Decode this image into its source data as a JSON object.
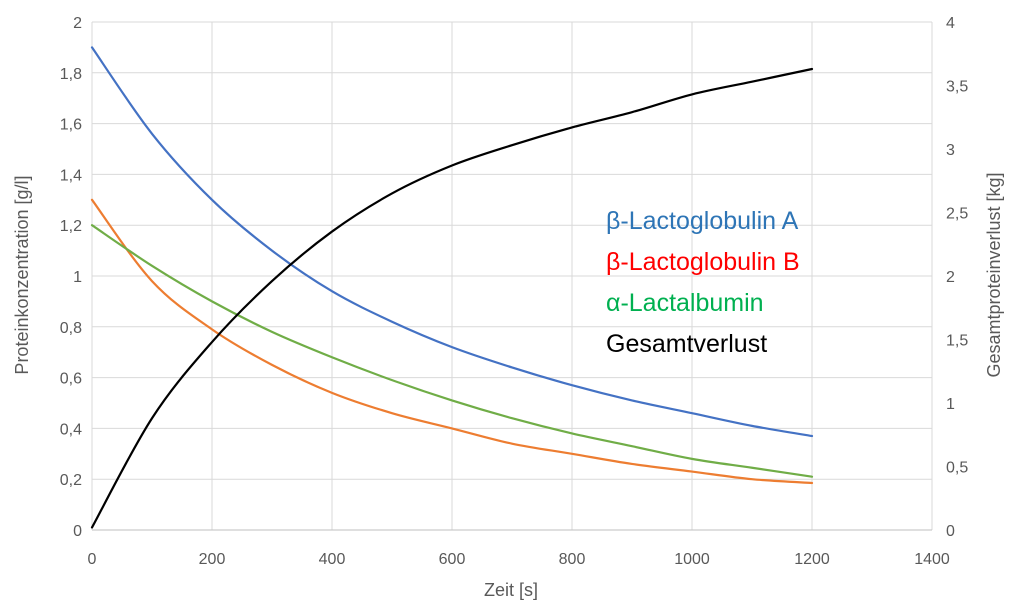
{
  "chart_data": {
    "type": "line",
    "title": "",
    "xlabel": "Zeit [s]",
    "ylabel_left": "Proteinkonzentration [g/l]",
    "ylabel_right": "Gesamtproteinverlust [kg]",
    "xlim": [
      0,
      1400
    ],
    "ylim_left": [
      0,
      2
    ],
    "ylim_right": [
      0,
      4
    ],
    "x_ticks": [
      "0",
      "200",
      "400",
      "600",
      "800",
      "1000",
      "1200",
      "1400"
    ],
    "y_left_ticks": [
      "0",
      "0,2",
      "0,4",
      "0,6",
      "0,8",
      "1",
      "1,2",
      "1,4",
      "1,6",
      "1,8",
      "2"
    ],
    "y_right_ticks": [
      "0",
      "0,5",
      "1",
      "1,5",
      "2",
      "2,5",
      "3",
      "3,5",
      "4"
    ],
    "grid": true,
    "legend_position": "center-right",
    "x": [
      0,
      100,
      200,
      300,
      400,
      500,
      600,
      700,
      800,
      900,
      1000,
      1100,
      1200
    ],
    "series": [
      {
        "name": "β-Lactoglobulin A",
        "axis": "left",
        "color": "#4472C4",
        "legend_color": "#2E75B6",
        "values": [
          1.9,
          1.56,
          1.3,
          1.1,
          0.94,
          0.82,
          0.72,
          0.64,
          0.57,
          0.51,
          0.46,
          0.41,
          0.37
        ]
      },
      {
        "name": "β-Lactoglobulin B",
        "axis": "left",
        "color": "#ED7D31",
        "legend_color": "#FF0000",
        "values": [
          1.3,
          0.98,
          0.79,
          0.65,
          0.54,
          0.46,
          0.4,
          0.34,
          0.3,
          0.26,
          0.23,
          0.2,
          0.185
        ]
      },
      {
        "name": "α-Lactalbumin",
        "axis": "left",
        "color": "#70AD47",
        "legend_color": "#00B050",
        "values": [
          1.2,
          1.04,
          0.9,
          0.78,
          0.68,
          0.59,
          0.51,
          0.44,
          0.38,
          0.33,
          0.28,
          0.245,
          0.21
        ]
      },
      {
        "name": "Gesamtverlust",
        "axis": "right",
        "color": "#000000",
        "legend_color": "#000000",
        "values": [
          0.02,
          0.88,
          1.48,
          1.96,
          2.35,
          2.65,
          2.87,
          3.03,
          3.17,
          3.29,
          3.43,
          3.53,
          3.63
        ]
      }
    ]
  }
}
